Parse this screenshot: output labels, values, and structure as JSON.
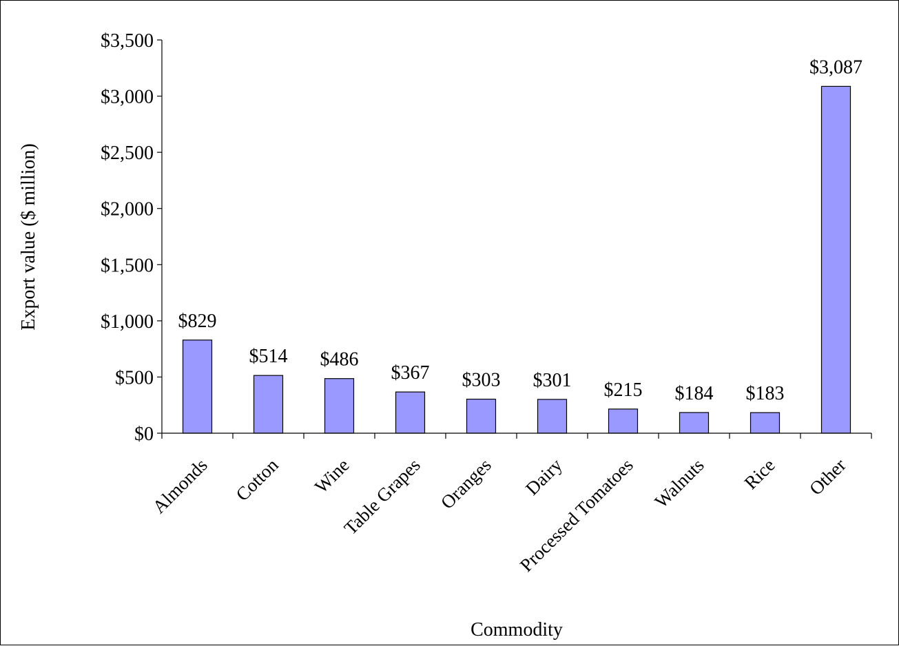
{
  "chart_data": {
    "type": "bar",
    "title": "",
    "xlabel": "Commodity",
    "ylabel": "Export value ($ million)",
    "ylim": [
      0,
      3500
    ],
    "ytick_step": 500,
    "grid": false,
    "legend": "none",
    "bar_color": "#9999ff",
    "categories": [
      "Almonds",
      "Cotton",
      "Wine",
      "Table Grapes",
      "Oranges",
      "Dairy",
      "Processed Tomatoes",
      "Walnuts",
      "Rice",
      "Other"
    ],
    "values": [
      829,
      514,
      486,
      367,
      303,
      301,
      215,
      184,
      183,
      3087
    ],
    "data_labels": [
      "$829",
      "$514",
      "$486",
      "$367",
      "$303",
      "$301",
      "$215",
      "$184",
      "$183",
      "$3,087"
    ],
    "ytick_labels": [
      "$0",
      "$500",
      "$1,000",
      "$1,500",
      "$2,000",
      "$2,500",
      "$3,000",
      "$3,500"
    ]
  }
}
